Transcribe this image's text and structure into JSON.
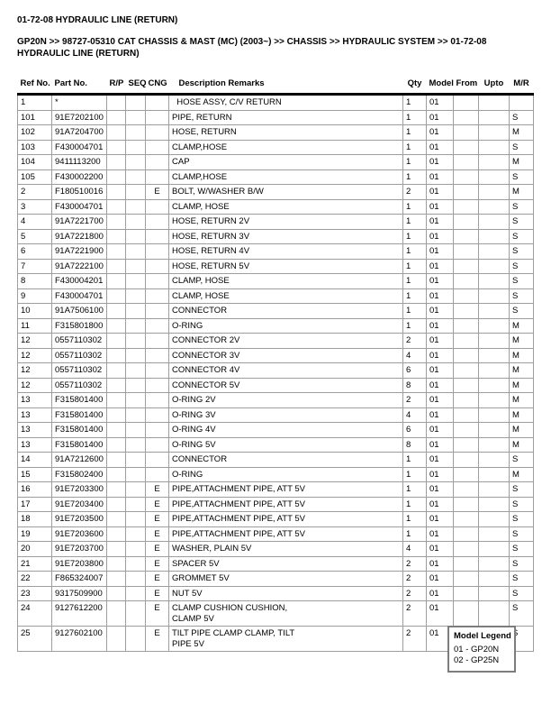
{
  "page": {
    "title": "01-72-08 HYDRAULIC LINE (RETURN)",
    "breadcrumb": "GP20N >> 98727-05310 CAT CHASSIS & MAST (MC) (2003~) >> CHASSIS >> HYDRAULIC SYSTEM >> 01-72-08 HYDRAULIC LINE (RETURN)"
  },
  "table": {
    "headers": {
      "ref": "Ref No.",
      "part": "Part No.",
      "rp": "R/P",
      "seq": "SEQ",
      "cng": "CNG",
      "desc": "Description Remarks",
      "qty": "Qty",
      "model": "Model",
      "from": "From",
      "upto": "Upto",
      "mr": "M/R"
    },
    "rows": [
      {
        "ref": "1",
        "part": "*",
        "cng": "",
        "desc": "  HOSE ASSY, C/V RETURN",
        "qty": "1",
        "model": "01",
        "mr": ""
      },
      {
        "ref": "101",
        "part": "91E7202100",
        "cng": "",
        "desc": "PIPE, RETURN",
        "qty": "1",
        "model": "01",
        "mr": "S"
      },
      {
        "ref": "102",
        "part": "91A7204700",
        "cng": "",
        "desc": "HOSE, RETURN",
        "qty": "1",
        "model": "01",
        "mr": "M"
      },
      {
        "ref": "103",
        "part": "F430004701",
        "cng": "",
        "desc": "CLAMP,HOSE",
        "qty": "1",
        "model": "01",
        "mr": "S"
      },
      {
        "ref": "104",
        "part": "9411113200",
        "cng": "",
        "desc": "CAP",
        "qty": "1",
        "model": "01",
        "mr": "M"
      },
      {
        "ref": "105",
        "part": "F430002200",
        "cng": "",
        "desc": "CLAMP,HOSE",
        "qty": "1",
        "model": "01",
        "mr": "S"
      },
      {
        "ref": "2",
        "part": "F180510016",
        "cng": "E",
        "desc": "BOLT, W/WASHER B/W",
        "qty": "2",
        "model": "01",
        "mr": "M"
      },
      {
        "ref": "3",
        "part": "F430004701",
        "cng": "",
        "desc": "CLAMP, HOSE",
        "qty": "1",
        "model": "01",
        "mr": "S"
      },
      {
        "ref": "4",
        "part": "91A7221700",
        "cng": "",
        "desc": "HOSE, RETURN 2V",
        "qty": "1",
        "model": "01",
        "mr": "S"
      },
      {
        "ref": "5",
        "part": "91A7221800",
        "cng": "",
        "desc": "HOSE, RETURN 3V",
        "qty": "1",
        "model": "01",
        "mr": "S"
      },
      {
        "ref": "6",
        "part": "91A7221900",
        "cng": "",
        "desc": "HOSE, RETURN 4V",
        "qty": "1",
        "model": "01",
        "mr": "S"
      },
      {
        "ref": "7",
        "part": "91A7222100",
        "cng": "",
        "desc": "HOSE, RETURN 5V",
        "qty": "1",
        "model": "01",
        "mr": "S"
      },
      {
        "ref": "8",
        "part": "F430004201",
        "cng": "",
        "desc": "CLAMP, HOSE",
        "qty": "1",
        "model": "01",
        "mr": "S"
      },
      {
        "ref": "9",
        "part": "F430004701",
        "cng": "",
        "desc": "CLAMP, HOSE",
        "qty": "1",
        "model": "01",
        "mr": "S"
      },
      {
        "ref": "10",
        "part": "91A7506100",
        "cng": "",
        "desc": "CONNECTOR",
        "qty": "1",
        "model": "01",
        "mr": "S"
      },
      {
        "ref": "11",
        "part": "F315801800",
        "cng": "",
        "desc": "O-RING",
        "qty": "1",
        "model": "01",
        "mr": "M"
      },
      {
        "ref": "12",
        "part": "0557110302",
        "cng": "",
        "desc": "CONNECTOR 2V",
        "qty": "2",
        "model": "01",
        "mr": "M"
      },
      {
        "ref": "12",
        "part": "0557110302",
        "cng": "",
        "desc": "CONNECTOR 3V",
        "qty": "4",
        "model": "01",
        "mr": "M"
      },
      {
        "ref": "12",
        "part": "0557110302",
        "cng": "",
        "desc": "CONNECTOR 4V",
        "qty": "6",
        "model": "01",
        "mr": "M"
      },
      {
        "ref": "12",
        "part": "0557110302",
        "cng": "",
        "desc": "CONNECTOR 5V",
        "qty": "8",
        "model": "01",
        "mr": "M"
      },
      {
        "ref": "13",
        "part": "F315801400",
        "cng": "",
        "desc": "O-RING 2V",
        "qty": "2",
        "model": "01",
        "mr": "M"
      },
      {
        "ref": "13",
        "part": "F315801400",
        "cng": "",
        "desc": "O-RING 3V",
        "qty": "4",
        "model": "01",
        "mr": "M"
      },
      {
        "ref": "13",
        "part": "F315801400",
        "cng": "",
        "desc": "O-RING 4V",
        "qty": "6",
        "model": "01",
        "mr": "M"
      },
      {
        "ref": "13",
        "part": "F315801400",
        "cng": "",
        "desc": "O-RING 5V",
        "qty": "8",
        "model": "01",
        "mr": "M"
      },
      {
        "ref": "14",
        "part": "91A7212600",
        "cng": "",
        "desc": "CONNECTOR",
        "qty": "1",
        "model": "01",
        "mr": "S"
      },
      {
        "ref": "15",
        "part": "F315802400",
        "cng": "",
        "desc": "O-RING",
        "qty": "1",
        "model": "01",
        "mr": "M"
      },
      {
        "ref": "16",
        "part": "91E7203300",
        "cng": "E",
        "desc": "PIPE,ATTACHMENT PIPE, ATT 5V",
        "qty": "1",
        "model": "01",
        "mr": "S"
      },
      {
        "ref": "17",
        "part": "91E7203400",
        "cng": "E",
        "desc": "PIPE,ATTACHMENT PIPE, ATT 5V",
        "qty": "1",
        "model": "01",
        "mr": "S"
      },
      {
        "ref": "18",
        "part": "91E7203500",
        "cng": "E",
        "desc": "PIPE,ATTACHMENT PIPE, ATT 5V",
        "qty": "1",
        "model": "01",
        "mr": "S"
      },
      {
        "ref": "19",
        "part": "91E7203600",
        "cng": "E",
        "desc": "PIPE,ATTACHMENT PIPE, ATT 5V",
        "qty": "1",
        "model": "01",
        "mr": "S"
      },
      {
        "ref": "20",
        "part": "91E7203700",
        "cng": "E",
        "desc": "WASHER, PLAIN 5V",
        "qty": "4",
        "model": "01",
        "mr": "S"
      },
      {
        "ref": "21",
        "part": "91E7203800",
        "cng": "E",
        "desc": "SPACER 5V",
        "qty": "2",
        "model": "01",
        "mr": "S"
      },
      {
        "ref": "22",
        "part": "F865324007",
        "cng": "E",
        "desc": "GROMMET 5V",
        "qty": "2",
        "model": "01",
        "mr": "S"
      },
      {
        "ref": "23",
        "part": "9317509900",
        "cng": "E",
        "desc": "NUT 5V",
        "qty": "2",
        "model": "01",
        "mr": "S"
      },
      {
        "ref": "24",
        "part": "9127612200",
        "cng": "E",
        "desc": "CLAMP CUSHION CUSHION,\nCLAMP 5V",
        "qty": "2",
        "model": "01",
        "mr": "S"
      },
      {
        "ref": "25",
        "part": "9127602100",
        "cng": "E",
        "desc": "TILT PIPE CLAMP CLAMP, TILT\nPIPE 5V",
        "qty": "2",
        "model": "01",
        "mr": "S"
      }
    ]
  },
  "model_legend": {
    "title": "Model Legend",
    "entries": [
      "01 - GP20N",
      "02 - GP25N"
    ]
  }
}
